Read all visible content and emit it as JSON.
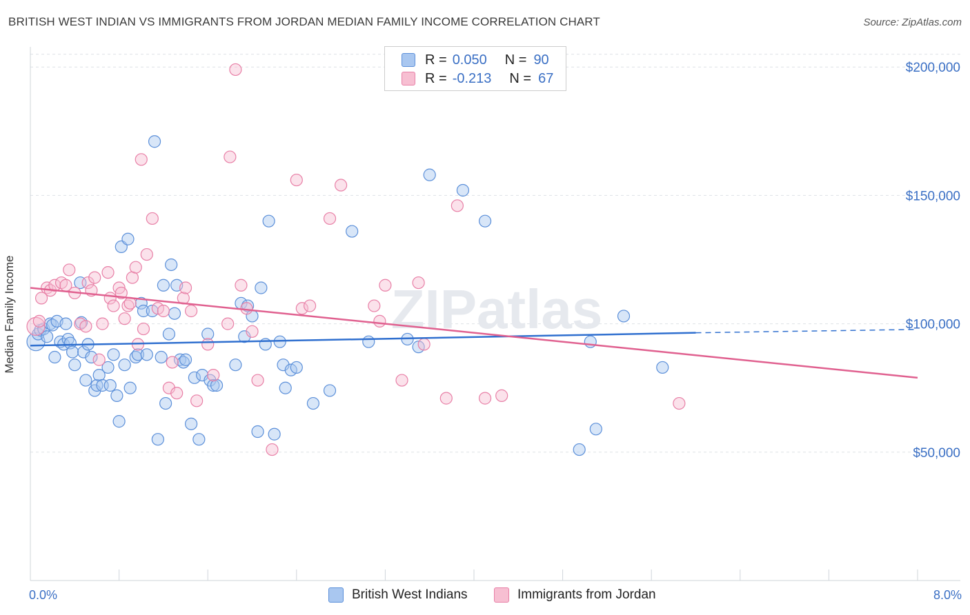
{
  "title": "BRITISH WEST INDIAN VS IMMIGRANTS FROM JORDAN MEDIAN FAMILY INCOME CORRELATION CHART",
  "source": "Source: ZipAtlas.com",
  "watermark": "ZIPatlas",
  "colors": {
    "blue": "#5b8fd9",
    "blue_fill": "#a9c7f0",
    "pink": "#e87fa6",
    "pink_fill": "#f7bfd2",
    "blue_line": "#2f6fcf",
    "pink_line": "#e0608f",
    "tick_label": "#3a6fc4"
  },
  "legend": {
    "rows": [
      {
        "r_label": "R =",
        "r_value": "0.050",
        "n_label": "N =",
        "n_value": "90"
      },
      {
        "r_label": "R =",
        "r_value": "-0.213",
        "n_label": "N =",
        "n_value": "67"
      }
    ]
  },
  "chart_data": {
    "type": "scatter",
    "xlabel": "",
    "ylabel": "Median Family Income",
    "xlim": [
      0,
      8
    ],
    "ylim": [
      0,
      210000
    ],
    "x_tick_labels": [
      "0.0%",
      "8.0%"
    ],
    "y_ticks": [
      50000,
      100000,
      150000,
      200000
    ],
    "y_tick_labels": [
      "$50,000",
      "$100,000",
      "$150,000",
      "$200,000"
    ],
    "grid": true,
    "legend_position": "top-center",
    "series": [
      {
        "name": "British West Indians",
        "color": "#5b8fd9",
        "trend": {
          "x0": 0.0,
          "y0": 91500,
          "x1": 6.0,
          "y1": 96500,
          "dash_to": 8.0,
          "dash_y": 97800
        },
        "points": [
          [
            0.05,
            93000
          ],
          [
            0.07,
            96000
          ],
          [
            0.09,
            97500
          ],
          [
            0.12,
            98000
          ],
          [
            0.15,
            95000
          ],
          [
            0.18,
            100000
          ],
          [
            0.2,
            99500
          ],
          [
            0.22,
            87000
          ],
          [
            0.24,
            101000
          ],
          [
            0.27,
            93000
          ],
          [
            0.3,
            92000
          ],
          [
            0.32,
            100000
          ],
          [
            0.34,
            94000
          ],
          [
            0.36,
            92500
          ],
          [
            0.38,
            89000
          ],
          [
            0.4,
            84000
          ],
          [
            0.45,
            116000
          ],
          [
            0.46,
            100500
          ],
          [
            0.48,
            89000
          ],
          [
            0.5,
            78000
          ],
          [
            0.52,
            92000
          ],
          [
            0.55,
            87000
          ],
          [
            0.58,
            74000
          ],
          [
            0.6,
            76000
          ],
          [
            0.62,
            80000
          ],
          [
            0.65,
            76000
          ],
          [
            0.7,
            83000
          ],
          [
            0.72,
            76000
          ],
          [
            0.75,
            88000
          ],
          [
            0.78,
            72000
          ],
          [
            0.8,
            62000
          ],
          [
            0.82,
            130000
          ],
          [
            0.85,
            84000
          ],
          [
            0.88,
            133000
          ],
          [
            0.9,
            75000
          ],
          [
            0.95,
            87000
          ],
          [
            0.97,
            88000
          ],
          [
            1.0,
            108000
          ],
          [
            1.02,
            105000
          ],
          [
            1.05,
            88000
          ],
          [
            1.1,
            105000
          ],
          [
            1.12,
            171000
          ],
          [
            1.15,
            55000
          ],
          [
            1.18,
            87000
          ],
          [
            1.2,
            115000
          ],
          [
            1.22,
            69000
          ],
          [
            1.25,
            96000
          ],
          [
            1.27,
            123000
          ],
          [
            1.3,
            104000
          ],
          [
            1.32,
            115000
          ],
          [
            1.35,
            86000
          ],
          [
            1.38,
            85000
          ],
          [
            1.4,
            86000
          ],
          [
            1.45,
            61000
          ],
          [
            1.48,
            79000
          ],
          [
            1.52,
            55000
          ],
          [
            1.55,
            80000
          ],
          [
            1.6,
            96000
          ],
          [
            1.62,
            78000
          ],
          [
            1.65,
            76000
          ],
          [
            1.68,
            76000
          ],
          [
            1.85,
            84000
          ],
          [
            1.9,
            108000
          ],
          [
            1.93,
            95000
          ],
          [
            1.96,
            107000
          ],
          [
            2.0,
            103000
          ],
          [
            2.05,
            58000
          ],
          [
            2.08,
            114000
          ],
          [
            2.12,
            92000
          ],
          [
            2.15,
            140000
          ],
          [
            2.2,
            57000
          ],
          [
            2.25,
            93000
          ],
          [
            2.28,
            84000
          ],
          [
            2.3,
            75000
          ],
          [
            2.35,
            82000
          ],
          [
            2.4,
            83000
          ],
          [
            2.55,
            69000
          ],
          [
            2.7,
            74000
          ],
          [
            2.9,
            136000
          ],
          [
            3.05,
            93000
          ],
          [
            3.4,
            94000
          ],
          [
            3.5,
            91000
          ],
          [
            3.6,
            158000
          ],
          [
            3.9,
            152000
          ],
          [
            4.1,
            140000
          ],
          [
            4.95,
            51000
          ],
          [
            5.05,
            93000
          ],
          [
            5.1,
            59000
          ],
          [
            5.35,
            103000
          ],
          [
            5.7,
            83000
          ]
        ]
      },
      {
        "name": "Immigrants from Jordan",
        "color": "#e87fa6",
        "trend": {
          "x0": 0.0,
          "y0": 114000,
          "x1": 8.0,
          "y1": 79000
        },
        "points": [
          [
            0.05,
            99000
          ],
          [
            0.08,
            101000
          ],
          [
            0.1,
            110000
          ],
          [
            0.15,
            114000
          ],
          [
            0.18,
            113000
          ],
          [
            0.22,
            115000
          ],
          [
            0.28,
            116000
          ],
          [
            0.32,
            115000
          ],
          [
            0.35,
            121000
          ],
          [
            0.4,
            112000
          ],
          [
            0.45,
            100000
          ],
          [
            0.5,
            99000
          ],
          [
            0.52,
            116000
          ],
          [
            0.55,
            113000
          ],
          [
            0.58,
            118000
          ],
          [
            0.62,
            86000
          ],
          [
            0.65,
            100000
          ],
          [
            0.7,
            120000
          ],
          [
            0.72,
            110000
          ],
          [
            0.75,
            107000
          ],
          [
            0.8,
            114000
          ],
          [
            0.82,
            112000
          ],
          [
            0.85,
            102000
          ],
          [
            0.88,
            107000
          ],
          [
            0.9,
            108000
          ],
          [
            0.92,
            118000
          ],
          [
            0.95,
            122000
          ],
          [
            0.97,
            92000
          ],
          [
            1.0,
            164000
          ],
          [
            1.02,
            98000
          ],
          [
            1.05,
            127000
          ],
          [
            1.1,
            141000
          ],
          [
            1.15,
            106000
          ],
          [
            1.2,
            105000
          ],
          [
            1.25,
            75000
          ],
          [
            1.28,
            85000
          ],
          [
            1.32,
            73000
          ],
          [
            1.38,
            110000
          ],
          [
            1.4,
            114000
          ],
          [
            1.45,
            105000
          ],
          [
            1.5,
            70000
          ],
          [
            1.6,
            92000
          ],
          [
            1.65,
            80000
          ],
          [
            1.78,
            100000
          ],
          [
            1.8,
            165000
          ],
          [
            1.85,
            199000
          ],
          [
            1.9,
            115000
          ],
          [
            1.95,
            106000
          ],
          [
            2.0,
            97000
          ],
          [
            2.05,
            78000
          ],
          [
            2.18,
            51000
          ],
          [
            2.4,
            156000
          ],
          [
            2.45,
            106000
          ],
          [
            2.52,
            107000
          ],
          [
            2.7,
            141000
          ],
          [
            2.8,
            154000
          ],
          [
            3.1,
            107000
          ],
          [
            3.15,
            101000
          ],
          [
            3.2,
            115000
          ],
          [
            3.35,
            78000
          ],
          [
            3.5,
            116000
          ],
          [
            3.55,
            92000
          ],
          [
            3.75,
            71000
          ],
          [
            3.85,
            146000
          ],
          [
            4.1,
            71000
          ],
          [
            4.25,
            72000
          ],
          [
            5.85,
            69000
          ]
        ]
      }
    ]
  }
}
